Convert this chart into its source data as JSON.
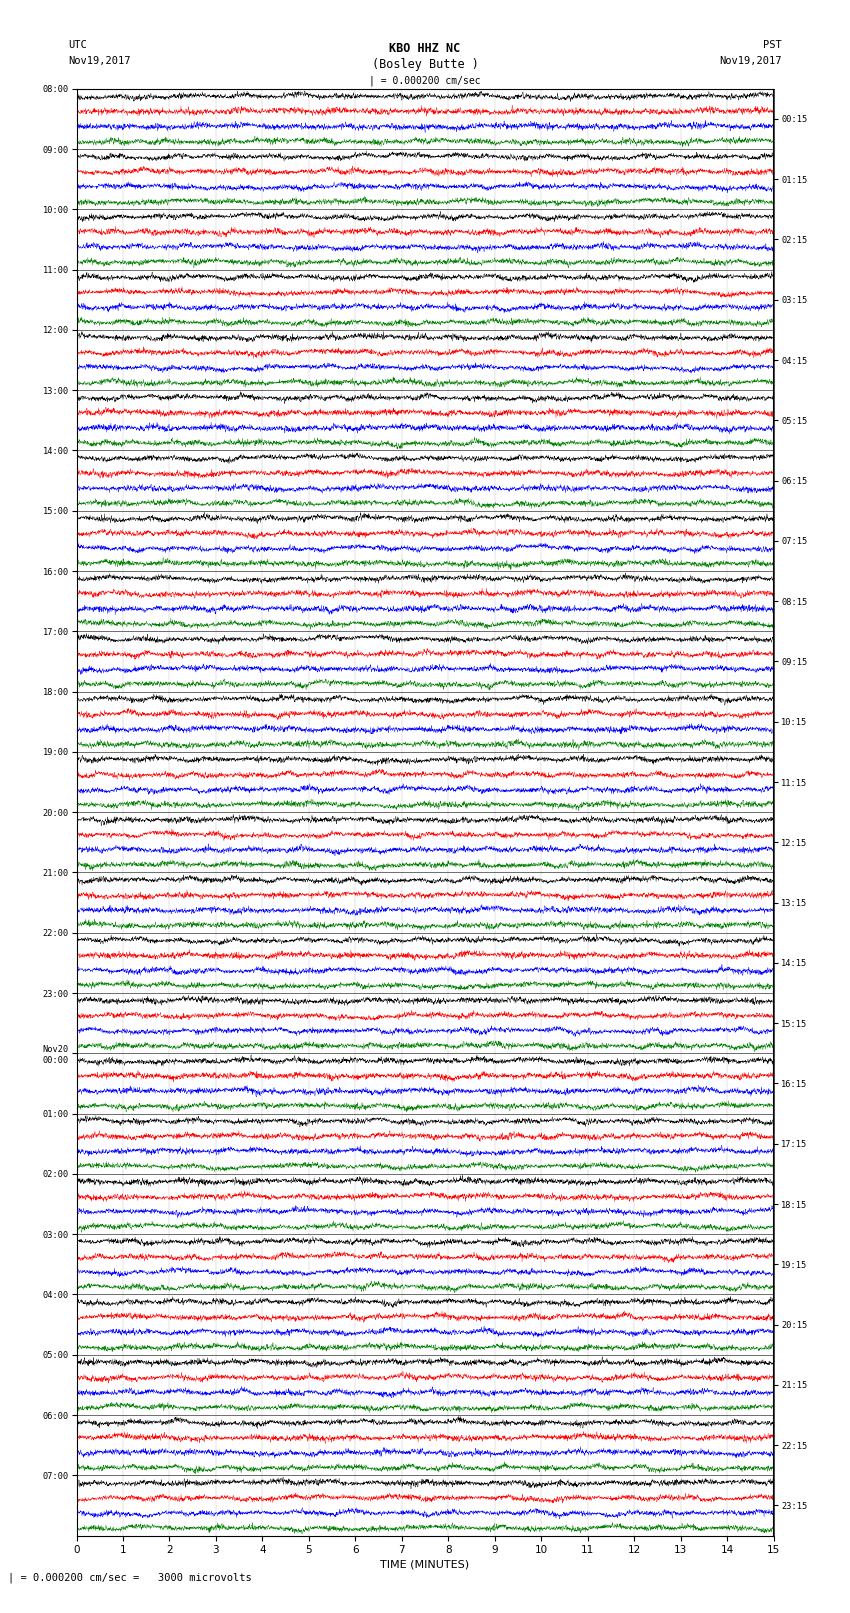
{
  "title_line1": "KBO HHZ NC",
  "title_line2": "(Bosley Butte )",
  "scale_label": "| = 0.000200 cm/sec",
  "footer_label": "| = 0.000200 cm/sec =   3000 microvolts",
  "utc_label": "UTC",
  "utc_date": "Nov19,2017",
  "pst_label": "PST",
  "pst_date": "Nov19,2017",
  "xlabel": "TIME (MINUTES)",
  "left_times": [
    "08:00",
    "09:00",
    "10:00",
    "11:00",
    "12:00",
    "13:00",
    "14:00",
    "15:00",
    "16:00",
    "17:00",
    "18:00",
    "19:00",
    "20:00",
    "21:00",
    "22:00",
    "23:00",
    "Nov20\n00:00",
    "01:00",
    "02:00",
    "03:00",
    "04:00",
    "05:00",
    "06:00",
    "07:00"
  ],
  "right_times": [
    "00:15",
    "01:15",
    "02:15",
    "03:15",
    "04:15",
    "05:15",
    "06:15",
    "07:15",
    "08:15",
    "09:15",
    "10:15",
    "11:15",
    "12:15",
    "13:15",
    "14:15",
    "15:15",
    "16:15",
    "17:15",
    "18:15",
    "19:15",
    "20:15",
    "21:15",
    "22:15",
    "23:15"
  ],
  "n_rows": 24,
  "traces_per_row": 4,
  "colors": [
    "black",
    "red",
    "blue",
    "green"
  ],
  "xlim": [
    0,
    15
  ],
  "xticks": [
    0,
    1,
    2,
    3,
    4,
    5,
    6,
    7,
    8,
    9,
    10,
    11,
    12,
    13,
    14,
    15
  ],
  "bg_color": "white",
  "fig_width": 8.5,
  "fig_height": 16.13,
  "dpi": 100,
  "seed": 42
}
